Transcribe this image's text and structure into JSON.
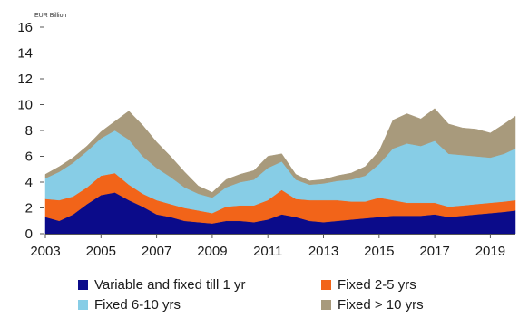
{
  "chart_data": {
    "type": "area",
    "stacked": true,
    "title": "",
    "unit_label": "EUR Billion",
    "xlabel": "",
    "ylabel": "",
    "ylim": [
      0,
      16
    ],
    "y_ticks": [
      0,
      2,
      4,
      6,
      8,
      10,
      12,
      14,
      16
    ],
    "xlim": [
      2003,
      2019.9
    ],
    "x_ticks": [
      2003,
      2005,
      2007,
      2009,
      2011,
      2013,
      2015,
      2017,
      2019
    ],
    "x_tick_labels": [
      "2003",
      "2005",
      "2007",
      "2009",
      "2011",
      "2013",
      "2015",
      "2017",
      "2019"
    ],
    "grid": false,
    "legend_position": "bottom",
    "x": [
      2003.0,
      2003.5,
      2004.0,
      2004.5,
      2005.0,
      2005.5,
      2006.0,
      2006.5,
      2007.0,
      2007.5,
      2008.0,
      2008.5,
      2009.0,
      2009.5,
      2010.0,
      2010.5,
      2011.0,
      2011.5,
      2012.0,
      2012.5,
      2013.0,
      2013.5,
      2014.0,
      2014.5,
      2015.0,
      2015.5,
      2016.0,
      2016.5,
      2017.0,
      2017.5,
      2018.0,
      2018.5,
      2019.0,
      2019.5,
      2019.9
    ],
    "series": [
      {
        "name": "Variable and fixed till 1 yr",
        "color": "#0b0b8a",
        "values": [
          1.3,
          1.0,
          1.5,
          2.3,
          3.0,
          3.2,
          2.6,
          2.1,
          1.5,
          1.3,
          1.0,
          0.9,
          0.8,
          1.0,
          1.0,
          0.9,
          1.1,
          1.5,
          1.3,
          1.0,
          0.9,
          1.0,
          1.1,
          1.2,
          1.3,
          1.4,
          1.4,
          1.4,
          1.5,
          1.3,
          1.4,
          1.5,
          1.6,
          1.7,
          1.8
        ]
      },
      {
        "name": "Fixed 2-5 yrs",
        "color": "#f26419",
        "values": [
          1.4,
          1.6,
          1.4,
          1.3,
          1.5,
          1.5,
          1.2,
          1.0,
          1.1,
          1.0,
          1.0,
          0.9,
          0.8,
          1.1,
          1.2,
          1.3,
          1.5,
          1.9,
          1.4,
          1.6,
          1.7,
          1.6,
          1.4,
          1.3,
          1.5,
          1.2,
          1.0,
          1.0,
          0.9,
          0.8,
          0.8,
          0.8,
          0.8,
          0.8,
          0.8
        ]
      },
      {
        "name": "Fixed 6-10 yrs",
        "color": "#87cde6",
        "values": [
          1.6,
          2.2,
          2.6,
          2.8,
          2.9,
          3.3,
          3.5,
          2.9,
          2.5,
          2.1,
          1.6,
          1.3,
          1.2,
          1.5,
          1.8,
          2.0,
          2.5,
          2.2,
          1.5,
          1.2,
          1.3,
          1.5,
          1.7,
          2.0,
          2.6,
          4.0,
          4.6,
          4.4,
          4.8,
          4.1,
          3.9,
          3.7,
          3.5,
          3.7,
          4.0
        ]
      },
      {
        "name": "Fixed > 10 yrs",
        "color": "#a89a7c",
        "values": [
          0.3,
          0.4,
          0.4,
          0.4,
          0.5,
          0.7,
          2.2,
          2.4,
          2.0,
          1.6,
          1.2,
          0.6,
          0.4,
          0.6,
          0.6,
          0.7,
          0.9,
          0.6,
          0.4,
          0.3,
          0.3,
          0.4,
          0.5,
          0.7,
          1.0,
          2.2,
          2.3,
          2.1,
          2.5,
          2.3,
          2.1,
          2.1,
          1.9,
          2.3,
          2.5
        ]
      }
    ]
  }
}
